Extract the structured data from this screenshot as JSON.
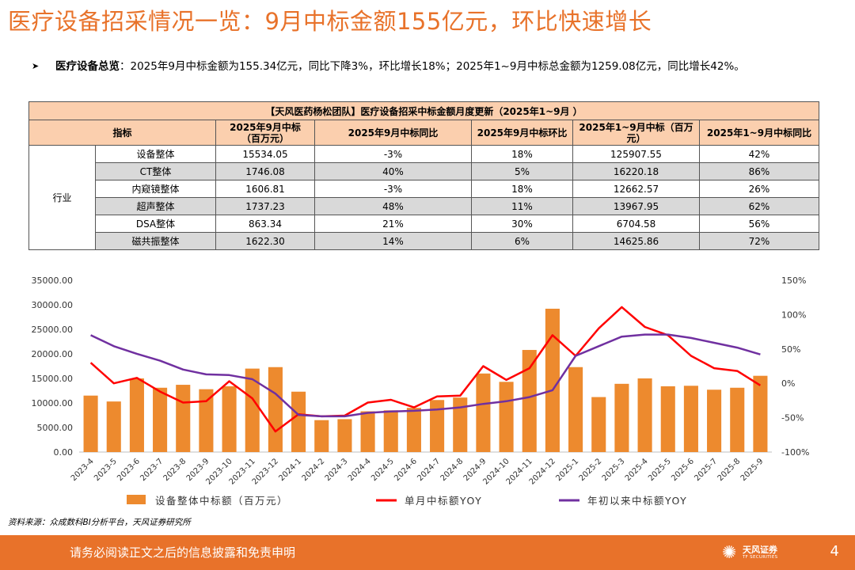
{
  "title": "医疗设备招采情况一览：9月中标金额155亿元，环比快速增长",
  "summary": {
    "bullet_label": "医疗设备总览",
    "text": "：2025年9月中标金额为155.34亿元，同比下降3%，环比增长18%；2025年1~9月中标总金额为1259.08亿元，同比增长42%。"
  },
  "table": {
    "caption": "【天风医药杨松团队】医疗设备招采中标金额月度更新（2025年1~9月 ）",
    "headers": [
      "指标",
      "2025年9月中标\n（百万元）",
      "2025年9月中标同比",
      "2025年9月中标环比",
      "2025年1~9月中标（百万\n元）",
      "2025年1~9月中标同比"
    ],
    "group_label": "行业",
    "rows": [
      {
        "name": "设备整体",
        "amount": "15534.05",
        "yoy": "-3%",
        "mom": "18%",
        "ytd": "125907.55",
        "ytd_yoy": "42%"
      },
      {
        "name": "CT整体",
        "amount": "1746.08",
        "yoy": "40%",
        "mom": "5%",
        "ytd": "16220.18",
        "ytd_yoy": "86%"
      },
      {
        "name": "内窥镜整体",
        "amount": "1606.81",
        "yoy": "-3%",
        "mom": "18%",
        "ytd": "12662.57",
        "ytd_yoy": "26%"
      },
      {
        "name": "超声整体",
        "amount": "1737.23",
        "yoy": "48%",
        "mom": "11%",
        "ytd": "13967.95",
        "ytd_yoy": "62%"
      },
      {
        "name": "DSA整体",
        "amount": "863.34",
        "yoy": "21%",
        "mom": "30%",
        "ytd": "6704.58",
        "ytd_yoy": "56%"
      },
      {
        "name": "磁共振整体",
        "amount": "1622.30",
        "yoy": "14%",
        "mom": "6%",
        "ytd": "14625.86",
        "ytd_yoy": "72%"
      }
    ]
  },
  "chart_data": {
    "type": "bar",
    "categories": [
      "2023-4",
      "2023-5",
      "2023-6",
      "2023-7",
      "2023-8",
      "2023-9",
      "2023-10",
      "2023-11",
      "2023-12",
      "2024-1",
      "2024-2",
      "2024-3",
      "2024-4",
      "2024-5",
      "2024-6",
      "2024-7",
      "2024-8",
      "2024-9",
      "2024-10",
      "2024-11",
      "2024-12",
      "2025-1",
      "2025-2",
      "2025-3",
      "2025-4",
      "2025-5",
      "2025-6",
      "2025-7",
      "2025-8",
      "2025-9"
    ],
    "series": [
      {
        "name": "设备整体中标额（百万元）",
        "type": "bar",
        "axis": "left",
        "color": "#ED8A2E",
        "values": [
          11500,
          10300,
          15000,
          13100,
          13700,
          12800,
          13400,
          17000,
          17300,
          12300,
          6500,
          6700,
          8300,
          8500,
          9000,
          10600,
          11100,
          16000,
          14300,
          20800,
          29200,
          17300,
          11200,
          13900,
          15000,
          13400,
          13500,
          12700,
          13100,
          15534
        ]
      },
      {
        "name": "单月中标额YOY",
        "type": "line",
        "axis": "right",
        "color": "#FF0000",
        "values": [
          30,
          0,
          8,
          -12,
          -28,
          -26,
          3,
          -22,
          -70,
          -45,
          -48,
          -47,
          -28,
          -24,
          -35,
          -19,
          -18,
          25,
          5,
          22,
          70,
          40,
          80,
          111,
          82,
          70,
          40,
          22,
          18,
          -3
        ]
      },
      {
        "name": "年初以来中标额YOY",
        "type": "line",
        "axis": "right",
        "color": "#7030A0",
        "values": [
          70,
          54,
          43,
          33,
          20,
          13,
          12,
          6,
          -15,
          -46,
          -48,
          -48,
          -43,
          -41,
          -40,
          -38,
          -35,
          -30,
          -26,
          -20,
          -10,
          40,
          54,
          68,
          71,
          71,
          66,
          59,
          52,
          42
        ]
      }
    ],
    "y_left": {
      "min": 0,
      "max": 35000,
      "step": 5000,
      "tick_format": "0.00"
    },
    "y_right": {
      "min": -100,
      "max": 150,
      "step": 50,
      "tick_format": "%"
    },
    "legend_position": "bottom"
  },
  "source": "资料来源：众成数科BI分析平台，天风证券研究所",
  "footer": {
    "notice": "请务必阅读正文之后的信息披露和免责申明",
    "logo_name": "天风证券",
    "logo_en": "TF SECURITIES",
    "page_number": "4"
  },
  "colors": {
    "accent": "#E8722A",
    "table_header": "#FBCFAE",
    "row_shade": "#D9D9D9"
  }
}
